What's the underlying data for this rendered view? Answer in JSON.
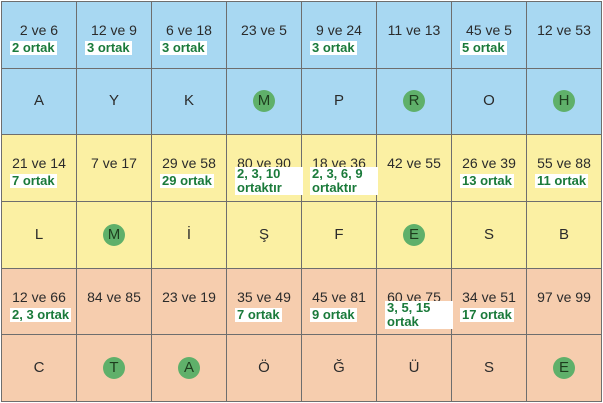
{
  "rows": [
    {
      "type": "pairs",
      "color": "blue",
      "cells": [
        {
          "pair": "2 ve 6",
          "note": "2 ortak"
        },
        {
          "pair": "12 ve 9",
          "note": "3 ortak"
        },
        {
          "pair": "6 ve 18",
          "note": "3 ortak"
        },
        {
          "pair": "23 ve 5",
          "note": ""
        },
        {
          "pair": "9 ve 24",
          "note": "3 ortak"
        },
        {
          "pair": "11 ve 13",
          "note": ""
        },
        {
          "pair": "45 ve 5",
          "note": "5 ortak"
        },
        {
          "pair": "12 ve 53",
          "note": ""
        }
      ]
    },
    {
      "type": "letters",
      "color": "blue",
      "cells": [
        {
          "letter": "A",
          "highlight": false
        },
        {
          "letter": "Y",
          "highlight": false
        },
        {
          "letter": "K",
          "highlight": false
        },
        {
          "letter": "M",
          "highlight": true
        },
        {
          "letter": "P",
          "highlight": false
        },
        {
          "letter": "R",
          "highlight": true
        },
        {
          "letter": "O",
          "highlight": false
        },
        {
          "letter": "H",
          "highlight": true
        }
      ]
    },
    {
      "type": "pairs",
      "color": "yellow",
      "cells": [
        {
          "pair": "21 ve 14",
          "note": "7 ortak"
        },
        {
          "pair": "7 ve 17",
          "note": ""
        },
        {
          "pair": "29 ve 58",
          "note": "29 ortak"
        },
        {
          "pair": "80 ve 90",
          "note": "2, 3, 10 ortaktır"
        },
        {
          "pair": "18 ve 36",
          "note": "2, 3, 6, 9 ortaktır"
        },
        {
          "pair": "42 ve 55",
          "note": ""
        },
        {
          "pair": "26 ve 39",
          "note": "13 ortak"
        },
        {
          "pair": "55 ve 88",
          "note": "11 ortak"
        }
      ]
    },
    {
      "type": "letters",
      "color": "yellow",
      "cells": [
        {
          "letter": "L",
          "highlight": false
        },
        {
          "letter": "M",
          "highlight": true
        },
        {
          "letter": "İ",
          "highlight": false
        },
        {
          "letter": "Ş",
          "highlight": false
        },
        {
          "letter": "F",
          "highlight": false
        },
        {
          "letter": "E",
          "highlight": true
        },
        {
          "letter": "S",
          "highlight": false
        },
        {
          "letter": "B",
          "highlight": false
        }
      ]
    },
    {
      "type": "pairs",
      "color": "orange",
      "cells": [
        {
          "pair": "12 ve 66",
          "note": "2, 3 ortak"
        },
        {
          "pair": "84 ve 85",
          "note": ""
        },
        {
          "pair": "23 ve 19",
          "note": ""
        },
        {
          "pair": "35 ve 49",
          "note": "7 ortak"
        },
        {
          "pair": "45 ve 81",
          "note": "9 ortak"
        },
        {
          "pair": "60 ve 75",
          "note": "3, 5, 15 ortak"
        },
        {
          "pair": "34 ve 51",
          "note": "17 ortak"
        },
        {
          "pair": "97 ve 99",
          "note": ""
        }
      ]
    },
    {
      "type": "letters",
      "color": "orange",
      "cells": [
        {
          "letter": "C",
          "highlight": false
        },
        {
          "letter": "T",
          "highlight": true
        },
        {
          "letter": "A",
          "highlight": true
        },
        {
          "letter": "Ö",
          "highlight": false
        },
        {
          "letter": "Ğ",
          "highlight": false
        },
        {
          "letter": "Ü",
          "highlight": false
        },
        {
          "letter": "S",
          "highlight": false
        },
        {
          "letter": "E",
          "highlight": true
        }
      ]
    }
  ]
}
